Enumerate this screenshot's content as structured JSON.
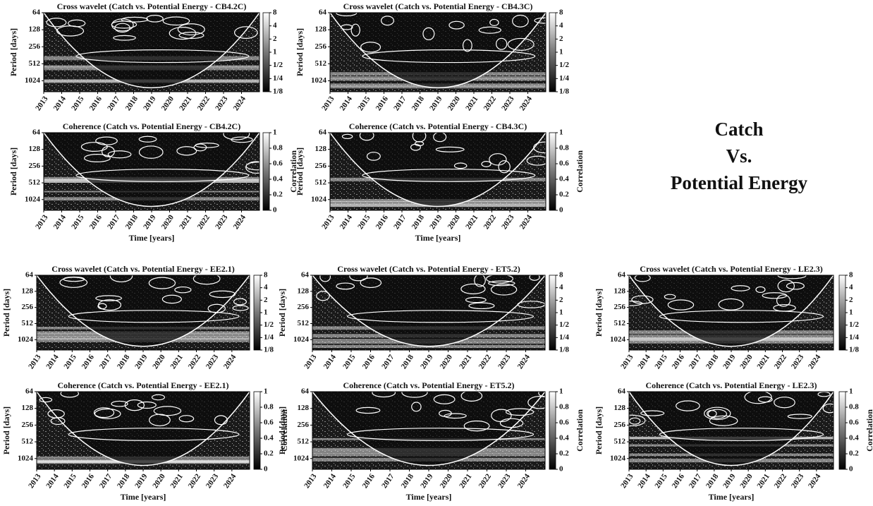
{
  "annotation": [
    "Catch",
    "Vs.",
    "Potential Energy"
  ],
  "chart_data": [
    {
      "type": "heatmap",
      "title": "Cross wavelet (Catch vs. Potential Energy - CB4.2C)",
      "ylabel": "Period [days]",
      "xlim": [
        2013,
        2025
      ],
      "xticks": [
        2013,
        2014,
        2015,
        2016,
        2017,
        2018,
        2019,
        2020,
        2021,
        2022,
        2023,
        2024
      ],
      "ylim": [
        64,
        1600
      ],
      "ylog": true,
      "yticks": [
        64,
        128,
        256,
        512,
        1024
      ],
      "colorbar": {
        "lim": [
          0.125,
          8
        ],
        "log": true,
        "ticks": [
          8,
          4,
          2,
          1,
          {
            "value": 0.5,
            "label": "1/2"
          },
          {
            "value": 0.25,
            "label": "1/4"
          },
          {
            "value": 0.125,
            "label": "1/8"
          }
        ]
      }
    },
    {
      "type": "heatmap",
      "title": "Cross wavelet (Catch vs. Potential Energy - CB4.3C)",
      "ylabel": "Period [days]",
      "xlim": [
        2013,
        2025
      ],
      "xticks": [
        2013,
        2014,
        2015,
        2016,
        2017,
        2018,
        2019,
        2020,
        2021,
        2022,
        2023,
        2024
      ],
      "ylim": [
        64,
        1600
      ],
      "ylog": true,
      "yticks": [
        64,
        128,
        256,
        512,
        1024
      ],
      "colorbar": {
        "lim": [
          0.125,
          8
        ],
        "log": true,
        "ticks": [
          8,
          4,
          2,
          1,
          {
            "value": 0.5,
            "label": "1/2"
          },
          {
            "value": 0.25,
            "label": "1/4"
          },
          {
            "value": 0.125,
            "label": "1/8"
          }
        ]
      }
    },
    {
      "type": "heatmap",
      "title": "Coherence (Catch vs. Potential Energy - CB4.2C)",
      "ylabel": "Period [days]",
      "xlabel": "Time [years]",
      "xlim": [
        2013,
        2025
      ],
      "xticks": [
        2013,
        2014,
        2015,
        2016,
        2017,
        2018,
        2019,
        2020,
        2021,
        2022,
        2023,
        2024
      ],
      "ylim": [
        64,
        1600
      ],
      "ylog": true,
      "yticks": [
        64,
        128,
        256,
        512,
        1024
      ],
      "colorbar": {
        "lim": [
          0,
          1
        ],
        "log": false,
        "ticks": [
          0,
          0.2,
          0.4,
          0.6,
          0.8,
          1
        ],
        "label": "Correlation"
      }
    },
    {
      "type": "heatmap",
      "title": "Coherence (Catch vs. Potential Energy - CB4.3C)",
      "ylabel": "Period [days]",
      "xlabel": "Time [years]",
      "xlim": [
        2013,
        2025
      ],
      "xticks": [
        2013,
        2014,
        2015,
        2016,
        2017,
        2018,
        2019,
        2020,
        2021,
        2022,
        2023,
        2024
      ],
      "ylim": [
        64,
        1600
      ],
      "ylog": true,
      "yticks": [
        64,
        128,
        256,
        512,
        1024
      ],
      "colorbar": {
        "lim": [
          0,
          1
        ],
        "log": false,
        "ticks": [
          0,
          0.2,
          0.4,
          0.6,
          0.8,
          1
        ],
        "label": "Correlation"
      }
    },
    {
      "type": "heatmap",
      "title": "Cross wavelet (Catch vs. Potential Energy - EE2.1)",
      "ylabel": "Period [days]",
      "xlim": [
        2013,
        2025
      ],
      "xticks": [
        2013,
        2014,
        2015,
        2016,
        2017,
        2018,
        2019,
        2020,
        2021,
        2022,
        2023,
        2024
      ],
      "ylim": [
        64,
        1600
      ],
      "ylog": true,
      "yticks": [
        64,
        128,
        256,
        512,
        1024
      ],
      "colorbar": {
        "lim": [
          0.125,
          8
        ],
        "log": true,
        "ticks": [
          8,
          4,
          2,
          1,
          {
            "value": 0.5,
            "label": "1/2"
          },
          {
            "value": 0.25,
            "label": "1/4"
          },
          {
            "value": 0.125,
            "label": "1/8"
          }
        ]
      }
    },
    {
      "type": "heatmap",
      "title": "Cross wavelet (Catch vs. Potential Energy - ET5.2)",
      "ylabel": "Period [days]",
      "xlim": [
        2013,
        2025
      ],
      "xticks": [
        2013,
        2014,
        2015,
        2016,
        2017,
        2018,
        2019,
        2020,
        2021,
        2022,
        2023,
        2024
      ],
      "ylim": [
        64,
        1600
      ],
      "ylog": true,
      "yticks": [
        64,
        128,
        256,
        512,
        1024
      ],
      "colorbar": {
        "lim": [
          0.125,
          8
        ],
        "log": true,
        "ticks": [
          8,
          4,
          2,
          1,
          {
            "value": 0.5,
            "label": "1/2"
          },
          {
            "value": 0.25,
            "label": "1/4"
          },
          {
            "value": 0.125,
            "label": "1/8"
          }
        ]
      }
    },
    {
      "type": "heatmap",
      "title": "Cross wavelet (Catch vs. Potential Energy - LE2.3)",
      "ylabel": "Period [days]",
      "xlim": [
        2013,
        2025
      ],
      "xticks": [
        2013,
        2014,
        2015,
        2016,
        2017,
        2018,
        2019,
        2020,
        2021,
        2022,
        2023,
        2024
      ],
      "ylim": [
        64,
        1600
      ],
      "ylog": true,
      "yticks": [
        64,
        128,
        256,
        512,
        1024
      ],
      "colorbar": {
        "lim": [
          0.125,
          8
        ],
        "log": true,
        "ticks": [
          8,
          4,
          2,
          1,
          {
            "value": 0.5,
            "label": "1/2"
          },
          {
            "value": 0.25,
            "label": "1/4"
          },
          {
            "value": 0.125,
            "label": "1/8"
          }
        ]
      }
    },
    {
      "type": "heatmap",
      "title": "Coherence (Catch vs. Potential Energy - EE2.1)",
      "ylabel": "Period [days]",
      "xlabel": "Time [years]",
      "xlim": [
        2013,
        2025
      ],
      "xticks": [
        2013,
        2014,
        2015,
        2016,
        2017,
        2018,
        2019,
        2020,
        2021,
        2022,
        2023,
        2024
      ],
      "ylim": [
        64,
        1600
      ],
      "ylog": true,
      "yticks": [
        64,
        128,
        256,
        512,
        1024
      ],
      "colorbar": {
        "lim": [
          0,
          1
        ],
        "log": false,
        "ticks": [
          0,
          0.2,
          0.4,
          0.6,
          0.8,
          1
        ],
        "label": "Correlation"
      }
    },
    {
      "type": "heatmap",
      "title": "Coherence (Catch vs. Potential Energy - ET5.2)",
      "ylabel": "Period [days]",
      "xlabel": "Time [years]",
      "xlim": [
        2013,
        2025
      ],
      "xticks": [
        2013,
        2014,
        2015,
        2016,
        2017,
        2018,
        2019,
        2020,
        2021,
        2022,
        2023,
        2024
      ],
      "ylim": [
        64,
        1600
      ],
      "ylog": true,
      "yticks": [
        64,
        128,
        256,
        512,
        1024
      ],
      "colorbar": {
        "lim": [
          0,
          1
        ],
        "log": false,
        "ticks": [
          0,
          0.2,
          0.4,
          0.6,
          0.8,
          1
        ],
        "label": "Correlation"
      }
    },
    {
      "type": "heatmap",
      "title": "Coherence (Catch vs. Potential Energy - LE2.3)",
      "ylabel": "Period [days]",
      "xlabel": "Time [years]",
      "xlim": [
        2013,
        2025
      ],
      "xticks": [
        2013,
        2014,
        2015,
        2016,
        2017,
        2018,
        2019,
        2020,
        2021,
        2022,
        2023,
        2024
      ],
      "ylim": [
        64,
        1600
      ],
      "ylog": true,
      "yticks": [
        64,
        128,
        256,
        512,
        1024
      ],
      "colorbar": {
        "lim": [
          0,
          1
        ],
        "log": false,
        "ticks": [
          0,
          0.2,
          0.4,
          0.6,
          0.8,
          1
        ],
        "label": "Correlation"
      }
    }
  ]
}
